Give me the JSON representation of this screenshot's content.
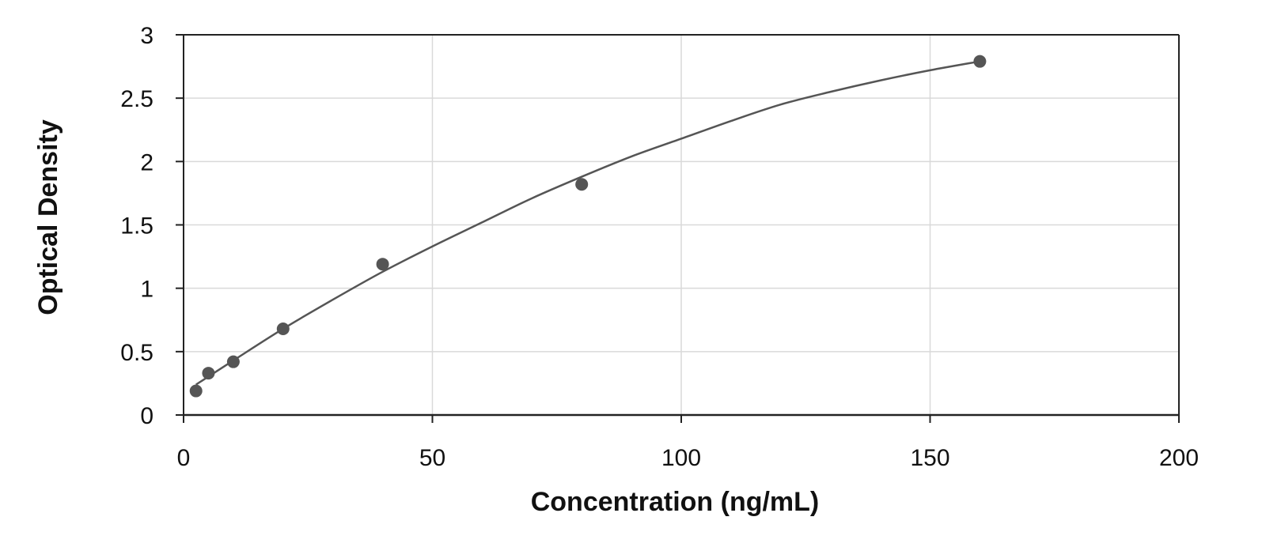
{
  "chart_data": {
    "type": "scatter",
    "title": "",
    "xlabel": "Concentration (ng/mL)",
    "ylabel": "Optical Density",
    "xlim": [
      0,
      200
    ],
    "ylim": [
      0,
      3
    ],
    "xticks": [
      0,
      50,
      100,
      150,
      200
    ],
    "yticks": [
      0,
      0.5,
      1,
      1.5,
      2,
      2.5,
      3
    ],
    "xtick_labels": [
      "0",
      "50",
      "100",
      "150",
      "200"
    ],
    "ytick_labels": [
      "0",
      "0.5",
      "1",
      "1.5",
      "2",
      "2.5",
      "3"
    ],
    "grid": true,
    "legend": "none",
    "series": [
      {
        "x": [
          2.5,
          5,
          10,
          20,
          40,
          80,
          160
        ],
        "y": [
          0.19,
          0.33,
          0.42,
          0.68,
          1.19,
          1.82,
          2.79
        ]
      }
    ],
    "fit_curve": {
      "x": [
        2.5,
        10,
        20,
        30,
        40,
        50,
        60,
        70,
        80,
        90,
        100,
        110,
        120,
        130,
        140,
        150,
        160
      ],
      "y": [
        0.24,
        0.43,
        0.68,
        0.91,
        1.13,
        1.33,
        1.52,
        1.71,
        1.88,
        2.04,
        2.18,
        2.32,
        2.45,
        2.55,
        2.64,
        2.72,
        2.79
      ]
    },
    "colors": {
      "marker": "#555555",
      "line": "#555555",
      "grid": "#d9d9d9",
      "axis": "#222222"
    }
  }
}
